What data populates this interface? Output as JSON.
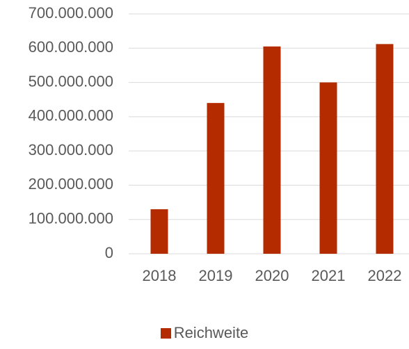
{
  "chart_data": {
    "type": "bar",
    "categories": [
      "2018",
      "2019",
      "2020",
      "2021",
      "2022"
    ],
    "series": [
      {
        "name": "Reichweite",
        "values": [
          130000000,
          440000000,
          605000000,
          500000000,
          612000000
        ]
      }
    ],
    "y_ticks": [
      "0",
      "100.000.000",
      "200.000.000",
      "300.000.000",
      "400.000.000",
      "500.000.000",
      "600.000.000",
      "700.000.000"
    ],
    "ylim": [
      0,
      700000000
    ],
    "grid": true,
    "legend_position": "bottom",
    "colors": {
      "bar": "#b52b00",
      "grid": "#d9d9d9",
      "text": "#595959"
    }
  }
}
